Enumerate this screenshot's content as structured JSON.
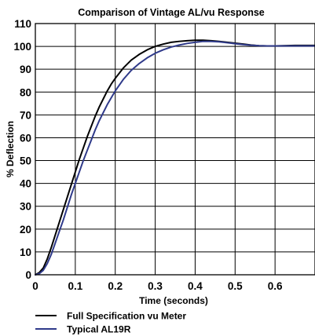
{
  "chart_data": {
    "type": "line",
    "title": "Comparison of Vintage AL/vu Response",
    "xlabel": "Time (seconds)",
    "ylabel": "% Deflection",
    "xlim": [
      0,
      0.7
    ],
    "ylim": [
      0,
      110
    ],
    "grid": true,
    "legend_position": "bottom-left",
    "x_ticks": [
      "0",
      "0.1",
      "0.2",
      "0.3",
      "0.4",
      "0.5",
      "0.6"
    ],
    "x_tick_values": [
      0,
      0.1,
      0.2,
      0.3,
      0.4,
      0.5,
      0.6
    ],
    "y_ticks": [
      "0",
      "10",
      "20",
      "30",
      "40",
      "50",
      "60",
      "70",
      "80",
      "90",
      "100",
      "110"
    ],
    "y_tick_values": [
      0,
      10,
      20,
      30,
      40,
      50,
      60,
      70,
      80,
      90,
      100,
      110
    ],
    "series": [
      {
        "name": "Full Specification vu Meter",
        "color": "#000000",
        "x": [
          0,
          0.01,
          0.02,
          0.03,
          0.04,
          0.05,
          0.06,
          0.07,
          0.08,
          0.09,
          0.1,
          0.11,
          0.12,
          0.13,
          0.14,
          0.15,
          0.16,
          0.17,
          0.18,
          0.19,
          0.2,
          0.22,
          0.24,
          0.26,
          0.28,
          0.3,
          0.32,
          0.34,
          0.36,
          0.38,
          0.4,
          0.42,
          0.44,
          0.46,
          0.48,
          0.5,
          0.52,
          0.54,
          0.56,
          0.58,
          0.6,
          0.62,
          0.65,
          0.7
        ],
        "y": [
          0,
          1,
          3,
          7,
          12,
          17.5,
          23,
          28.5,
          34,
          39.5,
          45,
          50.5,
          55.5,
          60.5,
          65,
          69.5,
          73.5,
          77,
          80.5,
          83.5,
          86,
          90.5,
          94,
          96.5,
          98.5,
          100,
          101,
          101.8,
          102.2,
          102.5,
          102.7,
          102.7,
          102.5,
          102.2,
          101.8,
          101.4,
          101.0,
          100.6,
          100.3,
          100.2,
          100.2,
          100.3,
          100.4,
          100.4
        ]
      },
      {
        "name": "Typical AL19R",
        "color": "#2f3a8a",
        "x": [
          0,
          0.01,
          0.02,
          0.03,
          0.04,
          0.05,
          0.06,
          0.07,
          0.08,
          0.09,
          0.1,
          0.11,
          0.12,
          0.13,
          0.14,
          0.15,
          0.16,
          0.17,
          0.18,
          0.19,
          0.2,
          0.22,
          0.24,
          0.26,
          0.28,
          0.3,
          0.32,
          0.34,
          0.36,
          0.38,
          0.4,
          0.42,
          0.44,
          0.46,
          0.48,
          0.5,
          0.52,
          0.54,
          0.56,
          0.58,
          0.6,
          0.62,
          0.65,
          0.7
        ],
        "y": [
          0,
          0.5,
          2,
          5,
          9,
          14,
          19,
          24,
          29.5,
          35,
          40,
          45,
          50,
          54.5,
          59,
          63.5,
          67.5,
          71,
          74.5,
          77.5,
          80.5,
          85.5,
          89.5,
          92.5,
          95,
          97,
          98.5,
          99.7,
          100.6,
          101.3,
          101.8,
          102.2,
          102.2,
          102.0,
          101.6,
          101.2,
          100.8,
          100.5,
          100.3,
          100.2,
          100.2,
          100.2,
          100.2,
          100.2
        ]
      }
    ]
  }
}
